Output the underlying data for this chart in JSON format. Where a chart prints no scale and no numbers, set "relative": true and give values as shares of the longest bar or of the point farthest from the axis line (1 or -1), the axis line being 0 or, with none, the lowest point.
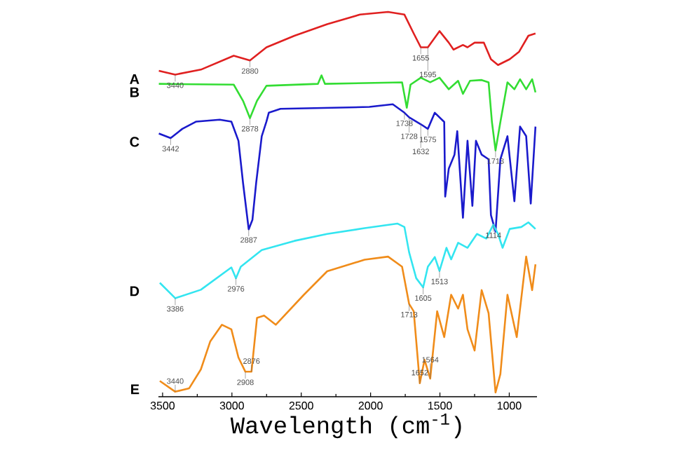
{
  "chart_data": {
    "type": "line",
    "relative": true,
    "tick_labels": "x",
    "xlabel": "Wavelength (cm$^{-1}$)",
    "xlim": [
      3530,
      800
    ],
    "xticks": [
      3500,
      3000,
      2500,
      2000,
      1500,
      1000
    ],
    "series": [
      {
        "name": "A",
        "color": "#e02020",
        "x": [
          3527,
          3409,
          3224,
          2987,
          2870,
          2751,
          2549,
          2313,
          2076,
          1874,
          1756,
          1689,
          1638,
          1587,
          1503,
          1436,
          1402,
          1334,
          1301,
          1250,
          1183,
          1132,
          1081,
          997,
          930,
          862,
          811
        ],
        "values": [
          0.847,
          0.837,
          0.85,
          0.886,
          0.874,
          0.908,
          0.938,
          0.968,
          0.993,
          1.0,
          0.993,
          0.944,
          0.908,
          0.908,
          0.95,
          0.92,
          0.902,
          0.914,
          0.908,
          0.92,
          0.92,
          0.877,
          0.862,
          0.877,
          0.896,
          0.938,
          0.944
        ]
      },
      {
        "name": "B",
        "color": "#33dd33",
        "x": [
          3527,
          2987,
          2920,
          2870,
          2819,
          2751,
          2380,
          2354,
          2329,
          1773,
          1739,
          1712,
          1638,
          1570,
          1503,
          1436,
          1369,
          1334,
          1283,
          1199,
          1149,
          1125,
          1099,
          1064,
          1013,
          963,
          922,
          878,
          835,
          811
        ],
        "values": [
          0.813,
          0.811,
          0.769,
          0.724,
          0.769,
          0.808,
          0.813,
          0.835,
          0.813,
          0.817,
          0.751,
          0.811,
          0.829,
          0.817,
          0.829,
          0.799,
          0.821,
          0.787,
          0.821,
          0.823,
          0.817,
          0.714,
          0.64,
          0.714,
          0.817,
          0.799,
          0.825,
          0.799,
          0.825,
          0.791
        ]
      },
      {
        "name": "C",
        "color": "#1a1acc",
        "x": [
          3527,
          3442,
          3358,
          3257,
          3088,
          3004,
          2953,
          2920,
          2879,
          2852,
          2825,
          2785,
          2751,
          2734,
          2684,
          2650,
          2009,
          1942,
          1840,
          1756,
          1722,
          1638,
          1587,
          1537,
          1469,
          1462,
          1436,
          1395,
          1375,
          1334,
          1301,
          1266,
          1240,
          1199,
          1149,
          1132,
          1099,
          1064,
          1013,
          963,
          922,
          878,
          845,
          811
        ],
        "values": [
          0.684,
          0.672,
          0.696,
          0.715,
          0.72,
          0.715,
          0.665,
          0.556,
          0.435,
          0.46,
          0.556,
          0.677,
          0.715,
          0.738,
          0.744,
          0.748,
          0.753,
          0.756,
          0.76,
          0.738,
          0.726,
          0.708,
          0.696,
          0.738,
          0.714,
          0.52,
          0.593,
          0.629,
          0.69,
          0.465,
          0.665,
          0.496,
          0.665,
          0.629,
          0.617,
          0.472,
          0.429,
          0.617,
          0.677,
          0.508,
          0.702,
          0.677,
          0.502,
          0.702
        ]
      },
      {
        "name": "D",
        "color": "#33e5f0",
        "x": [
          3520,
          3409,
          3224,
          3004,
          2971,
          2936,
          2785,
          2549,
          2313,
          2043,
          1807,
          1756,
          1722,
          1671,
          1621,
          1587,
          1537,
          1503,
          1453,
          1419,
          1369,
          1301,
          1233,
          1166,
          1115,
          1081,
          1048,
          997,
          913,
          862,
          811
        ],
        "values": [
          0.296,
          0.256,
          0.278,
          0.336,
          0.308,
          0.338,
          0.381,
          0.405,
          0.423,
          0.438,
          0.45,
          0.441,
          0.375,
          0.308,
          0.284,
          0.338,
          0.363,
          0.327,
          0.387,
          0.357,
          0.4,
          0.387,
          0.423,
          0.411,
          0.447,
          0.423,
          0.387,
          0.436,
          0.441,
          0.453,
          0.436
        ]
      },
      {
        "name": "E",
        "color": "#f08c1a",
        "x": [
          3520,
          3409,
          3308,
          3224,
          3156,
          3072,
          3004,
          2953,
          2903,
          2859,
          2819,
          2768,
          2684,
          2481,
          2313,
          2043,
          1874,
          1773,
          1722,
          1689,
          1645,
          1611,
          1570,
          1520,
          1469,
          1419,
          1369,
          1334,
          1301,
          1250,
          1199,
          1149,
          1099,
          1064,
          1013,
          946,
          878,
          835,
          811
        ],
        "values": [
          0.041,
          0.013,
          0.022,
          0.071,
          0.144,
          0.187,
          0.175,
          0.102,
          0.065,
          0.065,
          0.205,
          0.211,
          0.187,
          0.265,
          0.326,
          0.356,
          0.364,
          0.338,
          0.241,
          0.222,
          0.035,
          0.096,
          0.047,
          0.222,
          0.155,
          0.265,
          0.229,
          0.265,
          0.175,
          0.12,
          0.277,
          0.217,
          0.011,
          0.059,
          0.265,
          0.155,
          0.364,
          0.277,
          0.344
        ]
      }
    ],
    "annotations": [
      {
        "text": "3440",
        "x": 3409,
        "y": 0.837
      },
      {
        "text": "2880",
        "x": 2870,
        "y": 0.874
      },
      {
        "text": "1655",
        "x": 1638,
        "y": 0.908
      },
      {
        "text": "1595",
        "x": 1587,
        "y": 0.908
      },
      {
        "text": "2878",
        "x": 2870,
        "y": 0.724
      },
      {
        "text": "1713",
        "x": 1099,
        "y": 0.64
      },
      {
        "text": "1738",
        "x": 1756,
        "y": 0.738
      },
      {
        "text": "1728",
        "x": 1722,
        "y": 0.726
      },
      {
        "text": "1632",
        "x": 1638,
        "y": 0.708
      },
      {
        "text": "1575",
        "x": 1587,
        "y": 0.696
      },
      {
        "text": "3442",
        "x": 3442,
        "y": 0.672
      },
      {
        "text": "2887",
        "x": 2879,
        "y": 0.435
      },
      {
        "text": "1114",
        "x": 1115,
        "y": 0.447
      },
      {
        "text": "1513",
        "x": 1503,
        "y": 0.327
      },
      {
        "text": "1605",
        "x": 1621,
        "y": 0.284
      },
      {
        "text": "2976",
        "x": 2971,
        "y": 0.308
      },
      {
        "text": "3386",
        "x": 3409,
        "y": 0.256
      },
      {
        "text": "1713",
        "x": 1722,
        "y": 0.241
      },
      {
        "text": "3440",
        "x": 3409,
        "y": 0.013
      },
      {
        "text": "2908",
        "x": 2903,
        "y": 0.065
      },
      {
        "text": "2876",
        "x": 2859,
        "y": 0.065
      },
      {
        "text": "1652",
        "x": 1645,
        "y": 0.035
      },
      {
        "text": "1564",
        "x": 1570,
        "y": 0.047
      }
    ]
  }
}
